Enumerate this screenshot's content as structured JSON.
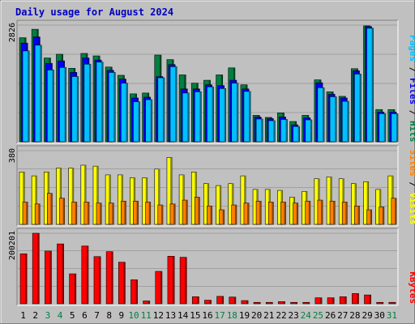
{
  "chart_data": {
    "type": "bar",
    "title": "Daily usage for August 2024",
    "colors": {
      "background": "#c0c0c0",
      "title": "#0000c0",
      "hits": "#008040",
      "files": "#0000ff",
      "pages": "#00c0ff",
      "visits": "#ffff00",
      "sites": "#ff8000",
      "kbytes": "#ff0000",
      "weekend_label": "#008040"
    },
    "days": [
      "1",
      "2",
      "3",
      "4",
      "5",
      "6",
      "7",
      "8",
      "9",
      "10",
      "11",
      "12",
      "13",
      "14",
      "15",
      "16",
      "17",
      "18",
      "19",
      "20",
      "21",
      "22",
      "23",
      "24",
      "25",
      "26",
      "27",
      "28",
      "29",
      "30",
      "31"
    ],
    "weekend_days": [
      "3",
      "4",
      "10",
      "11",
      "17",
      "18",
      "24",
      "25",
      "31"
    ],
    "panels": [
      {
        "id": "hits-files-pages",
        "ymax_label": "2826",
        "ymax": 2826,
        "series": [
          {
            "name": "Hits",
            "values": [
              2520,
              2725,
              2030,
              2120,
              1780,
              2140,
              2080,
              1810,
              1610,
              1160,
              1180,
              2100,
              1990,
              1620,
              1420,
              1490,
              1620,
              1790,
              1380,
              640,
              590,
              700,
              490,
              640,
              1500,
              1210,
              1100,
              1770,
              2808,
              780,
              780
            ]
          },
          {
            "name": "Files",
            "values": [
              2390,
              2540,
              1900,
              1960,
              1680,
              2030,
              1980,
              1730,
              1520,
              1060,
              1080,
              1580,
              1870,
              1280,
              1280,
              1380,
              1360,
              1490,
              1280,
              600,
              560,
              600,
              410,
              580,
              1430,
              1150,
              1060,
              1720,
              2790,
              720,
              720
            ]
          },
          {
            "name": "Pages",
            "values": [
              2200,
              2340,
              1740,
              1800,
              1580,
              1880,
              1930,
              1680,
              1420,
              970,
              1020,
              1550,
              1820,
              1180,
              1210,
              1330,
              1290,
              1420,
              1220,
              550,
              510,
              540,
              370,
              530,
              1310,
              1090,
              980,
              1640,
              2750,
              680,
              680
            ]
          }
        ]
      },
      {
        "id": "visits-sites",
        "ymax_label": "380",
        "ymax": 380,
        "series": [
          {
            "name": "Visits",
            "values": [
              270,
              250,
              270,
              290,
              290,
              305,
              300,
              255,
              255,
              240,
              240,
              285,
              345,
              255,
              270,
              210,
              200,
              210,
              250,
              180,
              180,
              175,
              140,
              170,
              235,
              245,
              235,
              210,
              220,
              180,
              250
            ]
          },
          {
            "name": "Sites",
            "values": [
              115,
              105,
              160,
              135,
              115,
              115,
              110,
              110,
              120,
              120,
              115,
              100,
              105,
              125,
              140,
              95,
              75,
              100,
              110,
              120,
              115,
              115,
              110,
              120,
              125,
              120,
              115,
              95,
              75,
              90,
              135
            ]
          }
        ]
      },
      {
        "id": "kbytes",
        "ymax_label": "200201",
        "ymax": 200201,
        "series": [
          {
            "name": "KBytes",
            "values": [
              142000,
              200201,
              150000,
              170000,
              85000,
              164000,
              134000,
              148000,
              118000,
              68000,
              8000,
              92000,
              135000,
              132000,
              20000,
              10000,
              21000,
              19000,
              9000,
              4000,
              4000,
              6000,
              4000,
              4000,
              17000,
              17000,
              20000,
              29000,
              25000,
              4000,
              4000
            ]
          }
        ]
      }
    ],
    "right_labels": [
      {
        "parts": [
          [
            "Pages",
            "#00c0ff"
          ],
          [
            " / ",
            "#000000"
          ],
          [
            "Files",
            "#0000ff"
          ],
          [
            " / ",
            "#000000"
          ],
          [
            "Hits",
            "#008040"
          ]
        ]
      },
      {
        "parts": [
          [
            "Sites",
            "#ff8000"
          ],
          [
            " / ",
            "#000000"
          ],
          [
            "Visits",
            "#ffff00"
          ]
        ]
      },
      {
        "parts": [
          [
            "KBytes",
            "#ff0000"
          ]
        ]
      }
    ]
  }
}
